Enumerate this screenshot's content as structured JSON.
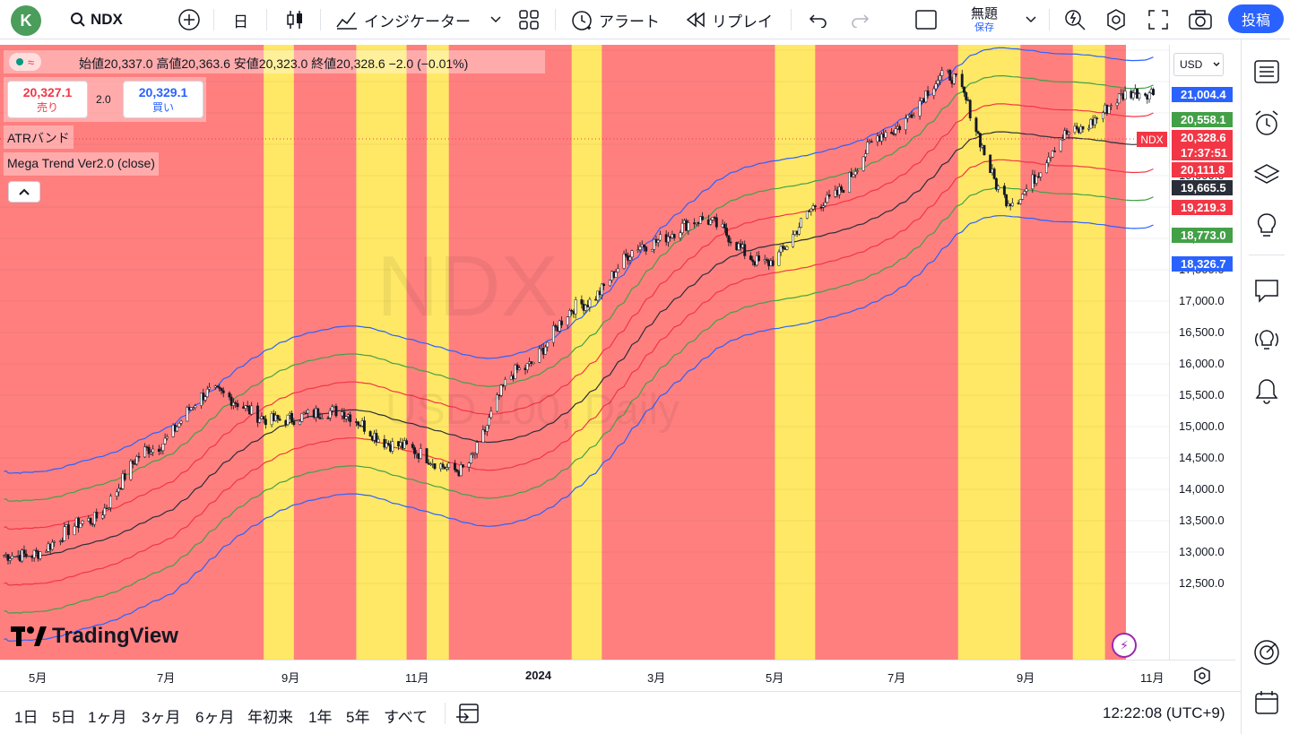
{
  "toolbar": {
    "avatar_letter": "K",
    "symbol": "NDX",
    "interval": "日",
    "indicators_label": "インジケーター",
    "alert_label": "アラート",
    "replay_label": "リプレイ",
    "layout_title": "無題",
    "layout_status": "保存",
    "post_label": "投稿"
  },
  "legend": {
    "open_label": "始値",
    "open": "20,337.0",
    "high_label": "高値",
    "high": "20,363.6",
    "low_label": "安値",
    "low": "20,323.0",
    "close_label": "終値",
    "close": "20,328.6",
    "change": "−2.0 (−0.01%)",
    "sell_price": "20,327.1",
    "sell_label": "売り",
    "spread": "2.0",
    "buy_price": "20,329.1",
    "buy_label": "買い",
    "indicator1": "ATRバンド",
    "indicator2": "Mega Trend Ver2.0 (close)"
  },
  "watermark": {
    "line1": "NDX",
    "line2": "USD 100, Daily"
  },
  "currency": "USD",
  "price_axis": {
    "ticks": [
      "19,000.0",
      "18,500.0",
      "18,000.0",
      "17,500.0",
      "17,000.0",
      "16,500.0",
      "16,000.0",
      "15,500.0",
      "15,000.0",
      "14,500.0",
      "14,000.0",
      "13,500.0",
      "13,000.0",
      "12,500.0"
    ],
    "labels": [
      {
        "value": "21,004.4",
        "color": "#2962ff"
      },
      {
        "value": "20,558.1",
        "color": "#43a047"
      },
      {
        "value": "20,328.6",
        "color": "#f23645"
      },
      {
        "value": "17:37:51",
        "color": "#f23645"
      },
      {
        "value": "20,111.8",
        "color": "#f23645"
      },
      {
        "value": "19,665.5",
        "color": "#2a2e39"
      },
      {
        "value": "19,219.3",
        "color": "#f23645"
      },
      {
        "value": "18,773.0",
        "color": "#43a047"
      },
      {
        "value": "18,326.7",
        "color": "#2962ff"
      }
    ],
    "symbol_tag": "NDX"
  },
  "time_axis": {
    "ticks": [
      "5月",
      "7月",
      "9月",
      "11月",
      "2024",
      "3月",
      "5月",
      "7月",
      "9月",
      "11月"
    ]
  },
  "ranges": [
    "1日",
    "5日",
    "1ヶ月",
    "3ヶ月",
    "6ヶ月",
    "年初来",
    "1年",
    "5年",
    "すべて"
  ],
  "clock": "12:22:08 (UTC+9)",
  "logo_text": "TradingView",
  "colors": {
    "bull_zone": "#ffe866",
    "bear_zone": "#ff7f7f",
    "accent": "#2962ff",
    "sell": "#f23645",
    "buy": "#2962ff"
  },
  "chart_data": {
    "type": "candlestick",
    "title": "",
    "symbol": "NDX",
    "interval": "Daily",
    "ylim": [
      12200,
      21300
    ],
    "x_ticks": [
      "5月",
      "7月",
      "9月",
      "11月",
      "2024",
      "3月",
      "5月",
      "7月",
      "9月",
      "11月"
    ],
    "close_series": [
      {
        "date": "2023-04",
        "value": 12950
      },
      {
        "date": "2023-05",
        "value": 13500
      },
      {
        "date": "2023-06",
        "value": 14650
      },
      {
        "date": "2023-07",
        "value": 15550
      },
      {
        "date": "2023-08",
        "value": 15100
      },
      {
        "date": "2023-09",
        "value": 15250
      },
      {
        "date": "2023-10",
        "value": 14700
      },
      {
        "date": "2023-11",
        "value": 14300
      },
      {
        "date": "2023-12",
        "value": 15900
      },
      {
        "date": "2024-01",
        "value": 16950
      },
      {
        "date": "2024-02",
        "value": 17900
      },
      {
        "date": "2024-03",
        "value": 18300
      },
      {
        "date": "2024-04",
        "value": 17600
      },
      {
        "date": "2024-05",
        "value": 18600
      },
      {
        "date": "2024-06",
        "value": 19700
      },
      {
        "date": "2024-07",
        "value": 20600
      },
      {
        "date": "2024-08",
        "value": 18600
      },
      {
        "date": "2024-09",
        "value": 19700
      },
      {
        "date": "2024-10",
        "value": 20328.6
      }
    ],
    "zones": [
      {
        "type": "bull",
        "from": "2023-08-10",
        "to": "2023-08-25"
      },
      {
        "type": "bull",
        "from": "2023-09-25",
        "to": "2023-10-20"
      },
      {
        "type": "bull",
        "from": "2023-10-30",
        "to": "2023-11-10"
      },
      {
        "type": "bull",
        "from": "2024-01-10",
        "to": "2024-01-25"
      },
      {
        "type": "bull",
        "from": "2024-04-20",
        "to": "2024-05-10"
      },
      {
        "type": "bull",
        "from": "2024-07-20",
        "to": "2024-08-20"
      },
      {
        "type": "bull",
        "from": "2024-09-15",
        "to": "2024-10-01"
      }
    ],
    "last_values": {
      "upper_blue": 21004.4,
      "upper_green": 20558.1,
      "last": 20328.6,
      "upper_red": 20111.8,
      "middle": 19665.5,
      "lower_red": 19219.3,
      "lower_green": 18773.0,
      "lower_blue": 18326.7
    }
  }
}
